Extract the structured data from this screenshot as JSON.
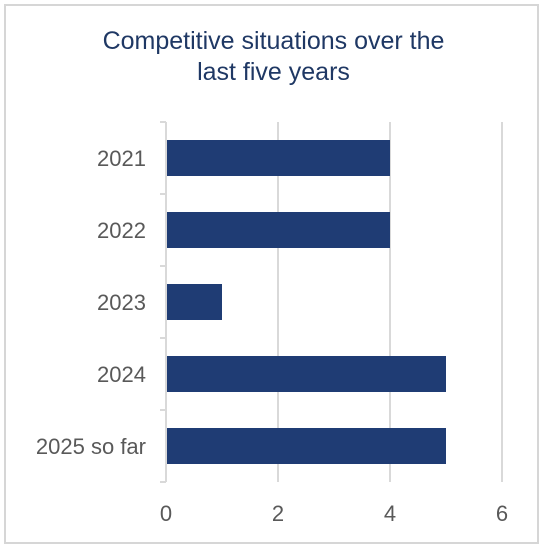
{
  "chart_data": {
    "type": "bar",
    "orientation": "horizontal",
    "title": "Competitive situations over the last five years",
    "title_lines": [
      "Competitive situations over the",
      "last five years"
    ],
    "categories": [
      "2021",
      "2022",
      "2023",
      "2024",
      "2025 so far"
    ],
    "values": [
      4,
      4,
      1,
      5,
      5
    ],
    "xlim": [
      0,
      6
    ],
    "xticks": [
      "0",
      "2",
      "4",
      "6"
    ],
    "grid": true,
    "legend": "none",
    "colors": {
      "bar": "#1f3c74",
      "title": "#1f3864",
      "grid": "#d9d9d9",
      "text": "#595959",
      "border": "#d6d6d6"
    }
  }
}
